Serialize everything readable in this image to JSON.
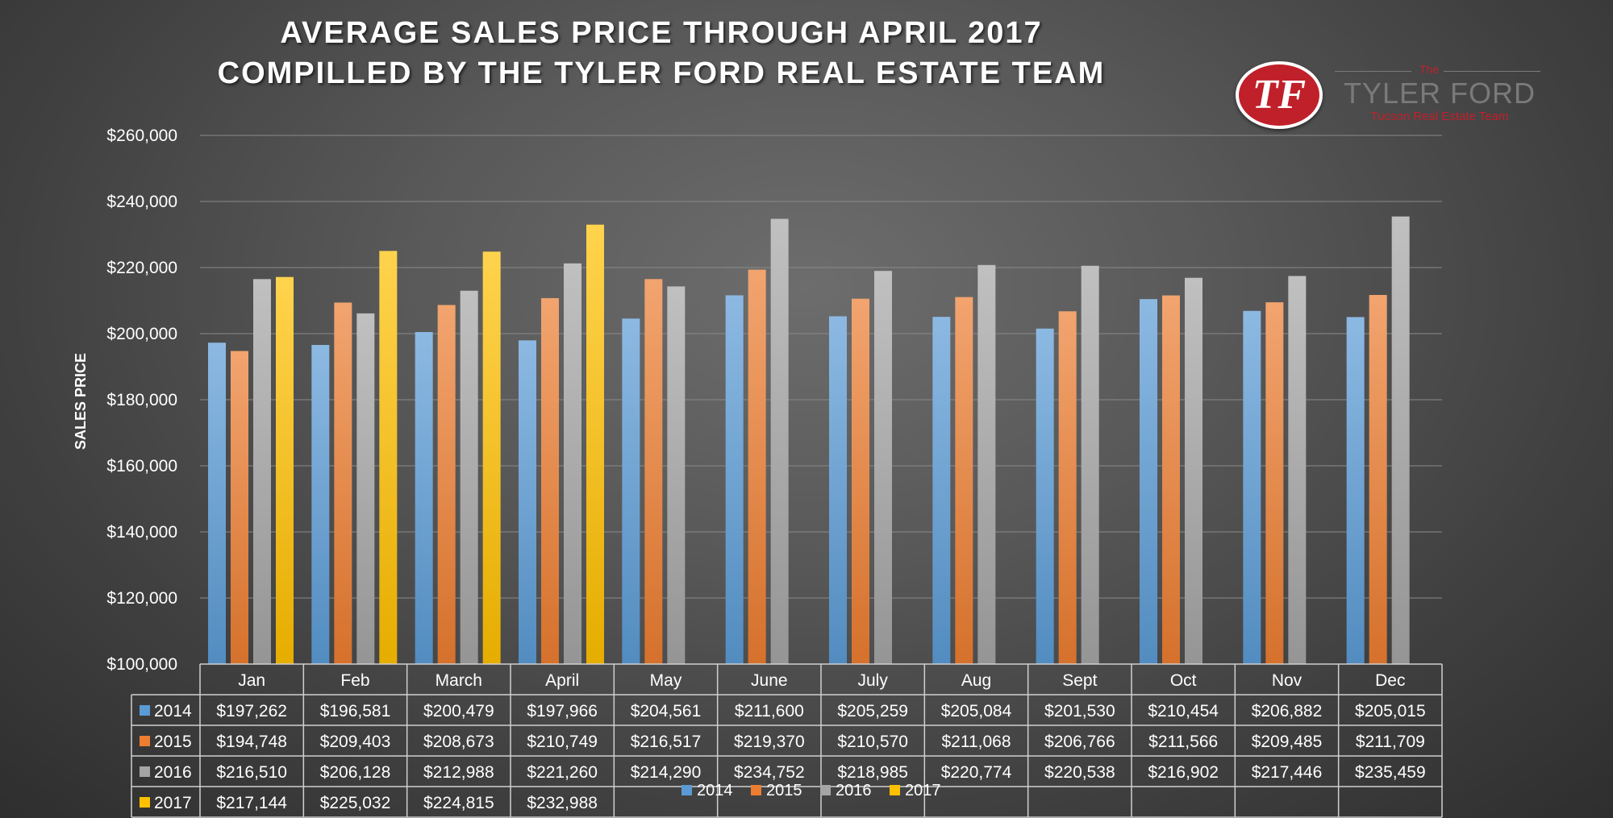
{
  "title_line1": "AVERAGE SALES PRICE THROUGH APRIL 2017",
  "title_line2": "COMPILLED BY THE TYLER FORD REAL ESTATE TEAM",
  "logo": {
    "mark": "TF",
    "small": "The",
    "name": "TYLER FORD",
    "subtitle": "Tucson Real Estate Team",
    "color": "#c0202a"
  },
  "chart_data": {
    "type": "bar",
    "ylabel": "SALES PRICE",
    "ylim": [
      100000,
      260000
    ],
    "yticks": [
      100000,
      120000,
      140000,
      160000,
      180000,
      200000,
      220000,
      240000,
      260000
    ],
    "ytick_labels": [
      "$100,000",
      "$120,000",
      "$140,000",
      "$160,000",
      "$180,000",
      "$200,000",
      "$220,000",
      "$240,000",
      "$260,000"
    ],
    "grid": true,
    "legend": "bottom",
    "categories": [
      "Jan",
      "Feb",
      "March",
      "April",
      "May",
      "June",
      "July",
      "Aug",
      "Sept",
      "Oct",
      "Nov",
      "Dec"
    ],
    "series": [
      {
        "name": "2014",
        "color": "#5b9bd5",
        "values": [
          197262,
          196581,
          200479,
          197966,
          204561,
          211600,
          205259,
          205084,
          201530,
          210454,
          206882,
          205015
        ],
        "labels": [
          "$197,262",
          "$196,581",
          "$200,479",
          "$197,966",
          "$204,561",
          "$211,600",
          "$205,259",
          "$205,084",
          "$201,530",
          "$210,454",
          "$206,882",
          "$205,015"
        ]
      },
      {
        "name": "2015",
        "color": "#ed7d31",
        "values": [
          194748,
          209403,
          208673,
          210749,
          216517,
          219370,
          210570,
          211068,
          206766,
          211566,
          209485,
          211709
        ],
        "labels": [
          "$194,748",
          "$209,403",
          "$208,673",
          "$210,749",
          "$216,517",
          "$219,370",
          "$210,570",
          "$211,068",
          "$206,766",
          "$211,566",
          "$209,485",
          "$211,709"
        ]
      },
      {
        "name": "2016",
        "color": "#a5a5a5",
        "values": [
          216510,
          206128,
          212988,
          221260,
          214290,
          234752,
          218985,
          220774,
          220538,
          216902,
          217446,
          235459
        ],
        "labels": [
          "$216,510",
          "$206,128",
          "$212,988",
          "$221,260",
          "$214,290",
          "$234,752",
          "$218,985",
          "$220,774",
          "$220,538",
          "$216,902",
          "$217,446",
          "$235,459"
        ]
      },
      {
        "name": "2017",
        "color": "#ffc000",
        "values": [
          217144,
          225032,
          224815,
          232988,
          null,
          null,
          null,
          null,
          null,
          null,
          null,
          null
        ],
        "labels": [
          "$217,144",
          "$225,032",
          "$224,815",
          "$232,988",
          "",
          "",
          "",
          "",
          "",
          "",
          "",
          ""
        ]
      }
    ]
  }
}
